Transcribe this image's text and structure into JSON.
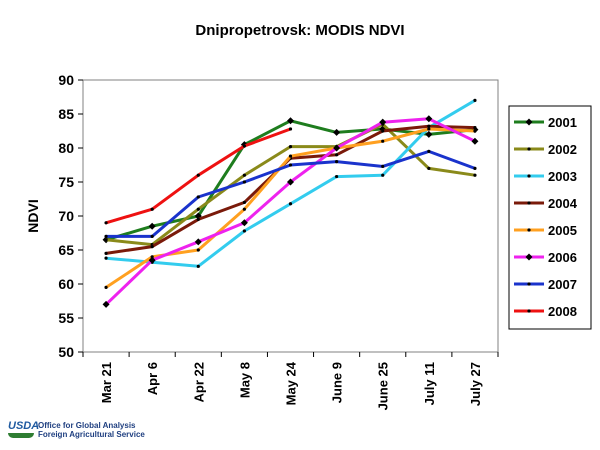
{
  "footer": {
    "logo": "USDA",
    "line1": "Office for Global Analysis",
    "line2": "Foreign Agricultural Service"
  },
  "chart_data": {
    "type": "line",
    "title": "Dnipropetrovsk:  MODIS NDVI",
    "xlabel": "",
    "ylabel": "NDVI",
    "ylim": [
      50,
      90
    ],
    "yticks": [
      50,
      55,
      60,
      65,
      70,
      75,
      80,
      85,
      90
    ],
    "grid": false,
    "legend_position": "right",
    "categories": [
      "Mar 21",
      "Apr 6",
      "Apr 22",
      "May 8",
      "May 24",
      "June 9",
      "June 25",
      "July 11",
      "July 27"
    ],
    "series": [
      {
        "name": "2001",
        "color": "#1e7d1e",
        "marker": "diamond",
        "values": [
          66.5,
          68.5,
          70.0,
          80.5,
          84.0,
          82.3,
          82.8,
          82.0,
          82.7
        ]
      },
      {
        "name": "2002",
        "color": "#8a8a1a",
        "marker": "dot",
        "values": [
          66.5,
          65.8,
          71.0,
          76.0,
          80.2,
          80.2,
          83.5,
          77.0,
          76.0
        ]
      },
      {
        "name": "2003",
        "color": "#33ccee",
        "marker": "dot",
        "values": [
          63.8,
          63.2,
          62.6,
          67.8,
          71.8,
          75.8,
          76.0,
          83.0,
          87.0
        ]
      },
      {
        "name": "2004",
        "color": "#7a1a0a",
        "marker": "dot",
        "values": [
          64.5,
          65.5,
          69.5,
          72.0,
          78.5,
          79.0,
          82.5,
          83.2,
          83.0
        ]
      },
      {
        "name": "2005",
        "color": "#ffa020",
        "marker": "dot",
        "values": [
          59.5,
          64.0,
          65.0,
          71.0,
          78.8,
          80.0,
          81.0,
          82.8,
          82.5
        ]
      },
      {
        "name": "2006",
        "color": "#ee22ee",
        "marker": "diamond",
        "values": [
          57.0,
          63.5,
          66.2,
          69.0,
          75.0,
          80.0,
          83.8,
          84.3,
          81.0
        ]
      },
      {
        "name": "2007",
        "color": "#1a33cc",
        "marker": "dot",
        "values": [
          67.0,
          67.0,
          72.8,
          75.0,
          77.5,
          78.0,
          77.3,
          79.5,
          77.0
        ]
      },
      {
        "name": "2008",
        "color": "#ee1111",
        "marker": "dot",
        "values": [
          69.0,
          71.0,
          76.0,
          80.3,
          82.8,
          null,
          null,
          null,
          null
        ]
      }
    ]
  }
}
